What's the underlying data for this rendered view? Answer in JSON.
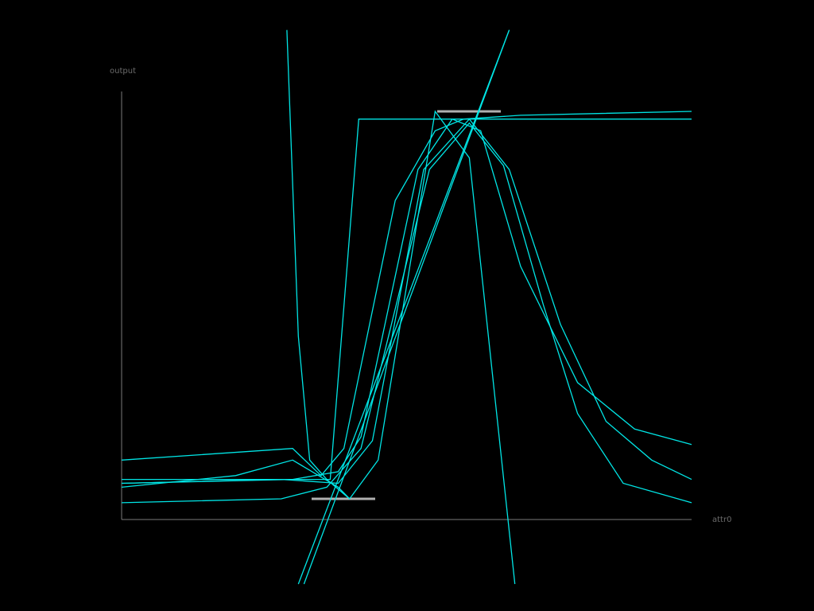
{
  "chart_data": {
    "type": "line",
    "xlabel": "attr0",
    "ylabel": "output",
    "grid": false,
    "legend": "none",
    "colors": {
      "curve": "#00e5e5",
      "axis": "#7a7a7a",
      "marker": "#b0b0b0"
    },
    "series": [
      {
        "points": [
          [
            0,
            0.1
          ],
          [
            0.3,
            0.13
          ],
          [
            0.35,
            0.06
          ],
          [
            0.39,
            0.13
          ],
          [
            0.48,
            0.77
          ],
          [
            0.55,
            0.95
          ],
          [
            0.6,
            0.98
          ],
          [
            0.7,
            0.99
          ],
          [
            1,
            1.0
          ]
        ]
      },
      {
        "points": [
          [
            0,
            0.04
          ],
          [
            0.3,
            0.05
          ],
          [
            0.38,
            0.07
          ],
          [
            0.42,
            0.16
          ],
          [
            0.52,
            0.85
          ],
          [
            0.58,
            0.98
          ],
          [
            0.63,
            0.95
          ],
          [
            0.7,
            0.6
          ],
          [
            0.8,
            0.3
          ],
          [
            0.9,
            0.18
          ],
          [
            1,
            0.14
          ]
        ]
      },
      {
        "points": [
          [
            0,
            0.04
          ],
          [
            0.28,
            0.05
          ],
          [
            0.38,
            0.04
          ],
          [
            0.44,
            0.15
          ],
          [
            0.53,
            0.85
          ],
          [
            0.61,
            0.98
          ],
          [
            0.68,
            0.85
          ],
          [
            0.77,
            0.45
          ],
          [
            0.85,
            0.2
          ],
          [
            0.93,
            0.1
          ],
          [
            1,
            0.05
          ]
        ]
      },
      {
        "points": [
          [
            0,
            -0.01
          ],
          [
            0.28,
            0.0
          ],
          [
            0.36,
            0.03
          ],
          [
            0.42,
            0.13
          ],
          [
            0.54,
            0.85
          ],
          [
            0.61,
            0.97
          ],
          [
            0.67,
            0.86
          ],
          [
            0.74,
            0.5
          ],
          [
            0.8,
            0.22
          ],
          [
            0.88,
            0.04
          ],
          [
            1,
            -0.01
          ]
        ]
      },
      {
        "points": [
          [
            0,
            0.05
          ],
          [
            0.22,
            0.05
          ],
          [
            0.33,
            0.05
          ],
          [
            0.366,
            0.05
          ],
          [
            0.416,
            0.98
          ],
          [
            0.66,
            0.98
          ],
          [
            1,
            0.98
          ]
        ]
      },
      {
        "points": [
          [
            0,
            0.03
          ],
          [
            0.2,
            0.06
          ],
          [
            0.3,
            0.1
          ],
          [
            0.38,
            0.03
          ],
          [
            0.4,
            0.0
          ],
          [
            0.45,
            0.1
          ],
          [
            0.55,
            1.0
          ],
          [
            0.61,
            0.88
          ],
          [
            0.69,
            -0.22
          ]
        ]
      },
      {
        "points": [
          [
            0.29,
            1.21
          ],
          [
            0.31,
            0.42
          ],
          [
            0.33,
            0.1
          ],
          [
            0.36,
            0.05
          ],
          [
            0.4,
            0.0
          ]
        ]
      },
      {
        "points": [
          [
            0.31,
            -0.22
          ],
          [
            0.68,
            1.21
          ]
        ]
      },
      {
        "points": [
          [
            0.32,
            -0.22
          ],
          [
            0.68,
            1.21
          ]
        ]
      }
    ]
  }
}
